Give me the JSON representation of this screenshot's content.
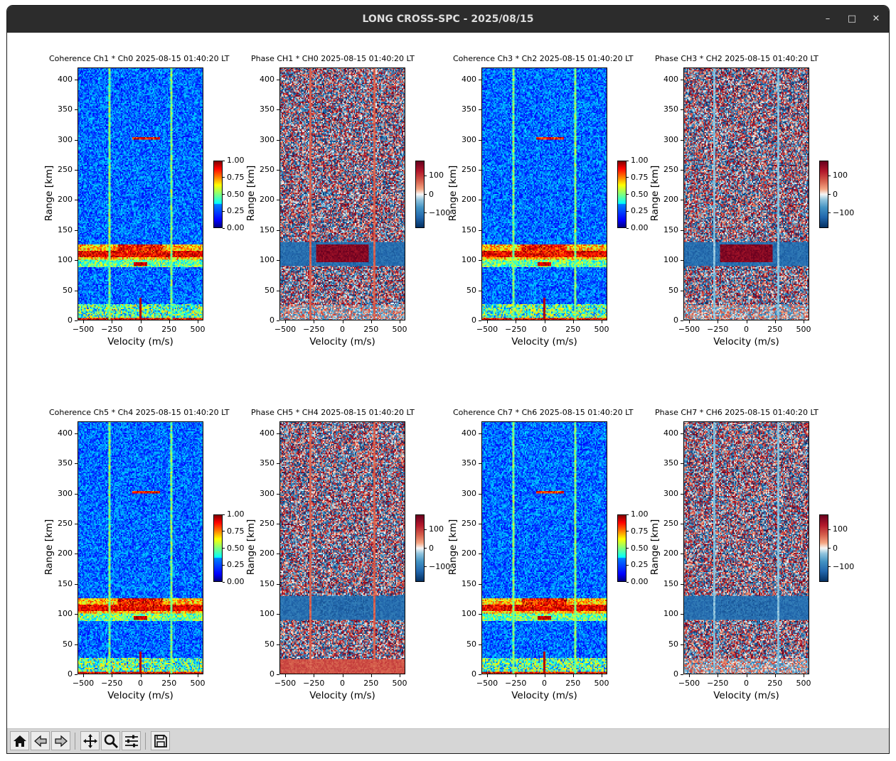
{
  "window": {
    "title": "LONG CROSS-SPC - 2025/08/15",
    "controls": [
      "minimize-icon",
      "maximize-icon",
      "close-icon"
    ]
  },
  "toolbar": {
    "buttons": [
      {
        "name": "home-button",
        "icon": "home-icon"
      },
      {
        "name": "back-button",
        "icon": "arrow-left-icon"
      },
      {
        "name": "forward-button",
        "icon": "arrow-right-icon"
      },
      {
        "name": "pan-button",
        "icon": "move-icon"
      },
      {
        "name": "zoom-button",
        "icon": "magnifier-icon"
      },
      {
        "name": "configure-subplots-button",
        "icon": "sliders-icon"
      },
      {
        "name": "save-button",
        "icon": "floppy-disk-icon"
      }
    ]
  },
  "chart_data": [
    {
      "type": "heatmap",
      "kind": "coherence",
      "title": "Coherence Ch1 * Ch0 2025-08-15 01:40:20 LT",
      "xlabel": "Velocity (m/s)",
      "ylabel": "Range [km]",
      "xlim": [
        -550,
        550
      ],
      "ylim": [
        0,
        420
      ],
      "xticks": [
        -500,
        -250,
        0,
        250,
        500
      ],
      "yticks": [
        0,
        50,
        100,
        150,
        200,
        250,
        300,
        350,
        400
      ],
      "colorbar": {
        "cmap": "jet",
        "range": [
          0,
          1
        ],
        "ticks": [
          "0.00",
          "0.25",
          "0.50",
          "0.75",
          "1.00"
        ]
      },
      "vlines": [
        -270,
        270
      ],
      "strong_band_km": [
        100,
        125
      ]
    },
    {
      "type": "heatmap",
      "kind": "phase",
      "title": "Phase CH1 * CH0 2025-08-15 01:40:20 LT",
      "xlabel": "Velocity (m/s)",
      "ylabel": "Range [km]",
      "xlim": [
        -550,
        550
      ],
      "ylim": [
        0,
        420
      ],
      "xticks": [
        -500,
        -250,
        0,
        250,
        500
      ],
      "yticks": [
        0,
        50,
        100,
        150,
        200,
        250,
        300,
        350,
        400
      ],
      "colorbar": {
        "cmap": "RdBu_r",
        "range": [
          -180,
          180
        ],
        "ticks": [
          "100",
          "0",
          "−100"
        ]
      },
      "vlines": [
        -280,
        280
      ],
      "strong_band_km": [
        90,
        130
      ]
    },
    {
      "type": "heatmap",
      "kind": "coherence",
      "title": "Coherence Ch3 * Ch2 2025-08-15 01:40:20 LT",
      "xlabel": "Velocity (m/s)",
      "ylabel": "Range [km]",
      "xlim": [
        -550,
        550
      ],
      "ylim": [
        0,
        420
      ],
      "xticks": [
        -500,
        -250,
        0,
        250,
        500
      ],
      "yticks": [
        0,
        50,
        100,
        150,
        200,
        250,
        300,
        350,
        400
      ],
      "colorbar": {
        "cmap": "jet",
        "range": [
          0,
          1
        ],
        "ticks": [
          "0.00",
          "0.25",
          "0.50",
          "0.75",
          "1.00"
        ]
      },
      "vlines": [
        -270,
        270
      ],
      "strong_band_km": [
        100,
        125
      ]
    },
    {
      "type": "heatmap",
      "kind": "phase",
      "title": "Phase CH3 * CH2 2025-08-15 01:40:20 LT",
      "xlabel": "Velocity (m/s)",
      "ylabel": "Range [km]",
      "xlim": [
        -550,
        550
      ],
      "ylim": [
        0,
        420
      ],
      "xticks": [
        -500,
        -250,
        0,
        250,
        500
      ],
      "yticks": [
        0,
        50,
        100,
        150,
        200,
        250,
        300,
        350,
        400
      ],
      "colorbar": {
        "cmap": "RdBu_r",
        "range": [
          -180,
          180
        ],
        "ticks": [
          "100",
          "0",
          "−100"
        ]
      },
      "vlines": [
        -280,
        280
      ],
      "strong_band_km": [
        90,
        130
      ]
    },
    {
      "type": "heatmap",
      "kind": "coherence",
      "title": "Coherence Ch5 * Ch4 2025-08-15 01:40:20 LT",
      "xlabel": "Velocity (m/s)",
      "ylabel": "Range [km]",
      "xlim": [
        -550,
        550
      ],
      "ylim": [
        0,
        420
      ],
      "xticks": [
        -500,
        -250,
        0,
        250,
        500
      ],
      "yticks": [
        0,
        50,
        100,
        150,
        200,
        250,
        300,
        350,
        400
      ],
      "colorbar": {
        "cmap": "jet",
        "range": [
          0,
          1
        ],
        "ticks": [
          "0.00",
          "0.25",
          "0.50",
          "0.75",
          "1.00"
        ]
      },
      "vlines": [
        -270,
        270
      ],
      "strong_band_km": [
        100,
        125
      ]
    },
    {
      "type": "heatmap",
      "kind": "phase",
      "title": "Phase CH5 * CH4 2025-08-15 01:40:20 LT",
      "xlabel": "Velocity (m/s)",
      "ylabel": "Range [km]",
      "xlim": [
        -550,
        550
      ],
      "ylim": [
        0,
        420
      ],
      "xticks": [
        -500,
        -250,
        0,
        250,
        500
      ],
      "yticks": [
        0,
        50,
        100,
        150,
        200,
        250,
        300,
        350,
        400
      ],
      "colorbar": {
        "cmap": "RdBu_r",
        "range": [
          -180,
          180
        ],
        "ticks": [
          "100",
          "0",
          "−100"
        ]
      },
      "vlines": [
        -280,
        280
      ],
      "strong_band_km": [
        90,
        130
      ]
    },
    {
      "type": "heatmap",
      "kind": "coherence",
      "title": "Coherence Ch7 * Ch6 2025-08-15 01:40:20 LT",
      "xlabel": "Velocity (m/s)",
      "ylabel": "Range [km]",
      "xlim": [
        -550,
        550
      ],
      "ylim": [
        0,
        420
      ],
      "xticks": [
        -500,
        -250,
        0,
        250,
        500
      ],
      "yticks": [
        0,
        50,
        100,
        150,
        200,
        250,
        300,
        350,
        400
      ],
      "colorbar": {
        "cmap": "jet",
        "range": [
          0,
          1
        ],
        "ticks": [
          "0.00",
          "0.25",
          "0.50",
          "0.75",
          "1.00"
        ]
      },
      "vlines": [
        -270,
        270
      ],
      "strong_band_km": [
        100,
        125
      ]
    },
    {
      "type": "heatmap",
      "kind": "phase",
      "title": "Phase CH7 * CH6 2025-08-15 01:40:20 LT",
      "xlabel": "Velocity (m/s)",
      "ylabel": "Range [km]",
      "xlim": [
        -550,
        550
      ],
      "ylim": [
        0,
        420
      ],
      "xticks": [
        -500,
        -250,
        0,
        250,
        500
      ],
      "yticks": [
        0,
        50,
        100,
        150,
        200,
        250,
        300,
        350,
        400
      ],
      "colorbar": {
        "cmap": "RdBu_r",
        "range": [
          -180,
          180
        ],
        "ticks": [
          "100",
          "0",
          "−100"
        ]
      },
      "vlines": [
        -280,
        280
      ],
      "strong_band_km": [
        90,
        130
      ]
    }
  ]
}
